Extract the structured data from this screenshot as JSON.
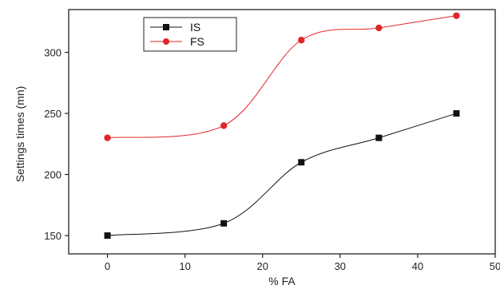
{
  "chart_data": {
    "type": "line",
    "xlabel": "% FA",
    "ylabel": "Settings times (mn)",
    "xlim": [
      -5,
      50
    ],
    "ylim": [
      135,
      335
    ],
    "x": [
      0,
      15,
      25,
      35,
      45
    ],
    "x_ticks": [
      "0",
      "10",
      "20",
      "30",
      "40",
      "50"
    ],
    "y_ticks": [
      "150",
      "200",
      "250",
      "300"
    ],
    "grid": false,
    "legend_position": "top-left",
    "series": [
      {
        "name": "IS",
        "values": [
          150,
          160,
          210,
          230,
          250
        ],
        "color": "#111111",
        "marker": "square"
      },
      {
        "name": "FS",
        "values": [
          230,
          240,
          310,
          320,
          330
        ],
        "color": "#e0262b",
        "marker": "circle"
      }
    ]
  }
}
